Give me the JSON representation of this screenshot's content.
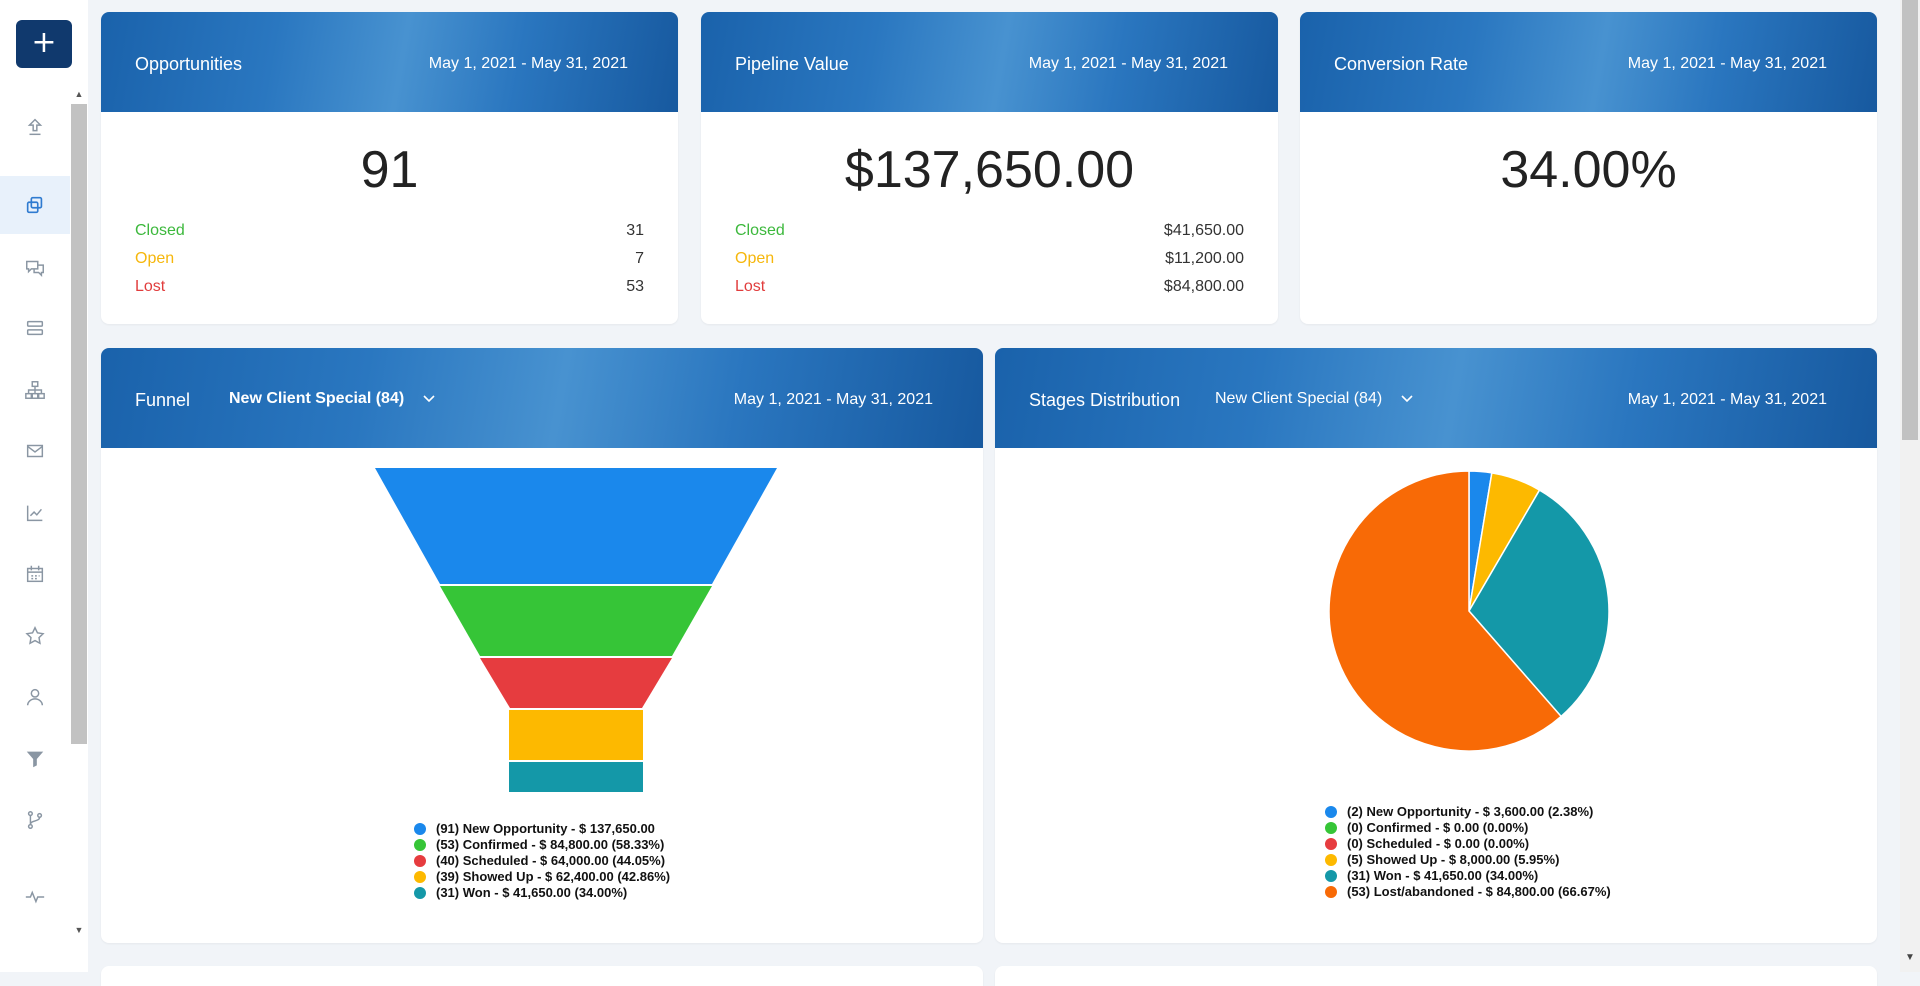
{
  "sidebar": {
    "add_label": "+",
    "scroll_up": "▲",
    "scroll_down": "▼",
    "items": [
      {
        "name": "launchpad",
        "icon": "upload-arrow-icon"
      },
      {
        "name": "opportunities",
        "icon": "copy-squares-icon",
        "active": true
      },
      {
        "name": "conversations",
        "icon": "chat-bubbles-icon"
      },
      {
        "name": "pipelines",
        "icon": "stacked-bars-icon"
      },
      {
        "name": "sites",
        "icon": "sitemap-icon"
      },
      {
        "name": "email",
        "icon": "envelope-icon"
      },
      {
        "name": "reporting",
        "icon": "line-chart-icon"
      },
      {
        "name": "calendar",
        "icon": "calendar-icon"
      },
      {
        "name": "reputation",
        "icon": "star-icon"
      },
      {
        "name": "contacts",
        "icon": "person-icon"
      },
      {
        "name": "funnels",
        "icon": "filter-icon"
      },
      {
        "name": "workflows",
        "icon": "branch-icon"
      },
      {
        "name": "activity",
        "icon": "pulse-icon"
      }
    ]
  },
  "opportunities": {
    "title": "Opportunities",
    "date_range": "May 1, 2021 - May 31, 2021",
    "total": "91",
    "rows": [
      {
        "label": "Closed",
        "value": "31"
      },
      {
        "label": "Open",
        "value": "7"
      },
      {
        "label": "Lost",
        "value": "53"
      }
    ]
  },
  "pipeline_value": {
    "title": "Pipeline Value",
    "date_range": "May 1, 2021 - May 31, 2021",
    "total": "$137,650.00",
    "rows": [
      {
        "label": "Closed",
        "value": "$41,650.00"
      },
      {
        "label": "Open",
        "value": "$11,200.00"
      },
      {
        "label": "Lost",
        "value": "$84,800.00"
      }
    ]
  },
  "conversion_rate": {
    "title": "Conversion Rate",
    "date_range": "May 1, 2021 - May 31, 2021",
    "total": "34.00%"
  },
  "funnel": {
    "title": "Funnel",
    "pipeline_select": "New Client Special (84)",
    "date_range": "May 1, 2021 - May 31, 2021"
  },
  "stages": {
    "title": "Stages Distribution",
    "pipeline_select": "New Client Special (84)",
    "date_range": "May 1, 2021 - May 31, 2021"
  },
  "chart_data": [
    {
      "type": "funnel",
      "stages": [
        {
          "name": "New Opportunity",
          "count": 91,
          "value": 137650.0,
          "percent": null,
          "color": "#1a88ec",
          "legend": "(91) New Opportunity - $ 137,650.00"
        },
        {
          "name": "Confirmed",
          "count": 53,
          "value": 84800.0,
          "percent": 58.33,
          "color": "#36c537",
          "legend": "(53) Confirmed - $ 84,800.00 (58.33%)"
        },
        {
          "name": "Scheduled",
          "count": 40,
          "value": 64000.0,
          "percent": 44.05,
          "color": "#e63c3f",
          "legend": "(40) Scheduled - $ 64,000.00 (44.05%)"
        },
        {
          "name": "Showed Up",
          "count": 39,
          "value": 62400.0,
          "percent": 42.86,
          "color": "#fdb900",
          "legend": "(39) Showed Up - $ 62,400.00 (42.86%)"
        },
        {
          "name": "Won",
          "count": 31,
          "value": 41650.0,
          "percent": 34.0,
          "color": "#1498a8",
          "legend": "(31) Won - $ 41,650.00 (34.00%)"
        }
      ]
    },
    {
      "type": "pie",
      "slices": [
        {
          "name": "New Opportunity",
          "count": 2,
          "value": 3600.0,
          "percent": 2.38,
          "color": "#1a88ec",
          "legend": "(2) New Opportunity - $ 3,600.00 (2.38%)"
        },
        {
          "name": "Confirmed",
          "count": 0,
          "value": 0.0,
          "percent": 0.0,
          "color": "#36c537",
          "legend": "(0) Confirmed - $ 0.00 (0.00%)"
        },
        {
          "name": "Scheduled",
          "count": 0,
          "value": 0.0,
          "percent": 0.0,
          "color": "#e63c3f",
          "legend": "(0) Scheduled - $ 0.00 (0.00%)"
        },
        {
          "name": "Showed Up",
          "count": 5,
          "value": 8000.0,
          "percent": 5.95,
          "color": "#fdb900",
          "legend": "(5) Showed Up - $ 8,000.00 (5.95%)"
        },
        {
          "name": "Won",
          "count": 31,
          "value": 41650.0,
          "percent": 34.0,
          "color": "#1498a8",
          "legend": "(31) Won - $ 41,650.00 (34.00%)"
        },
        {
          "name": "Lost/abandoned",
          "count": 53,
          "value": 84800.0,
          "percent": 66.67,
          "color": "#f86a06",
          "legend": "(53) Lost/abandoned - $ 84,800.00 (66.67%)"
        }
      ]
    }
  ]
}
